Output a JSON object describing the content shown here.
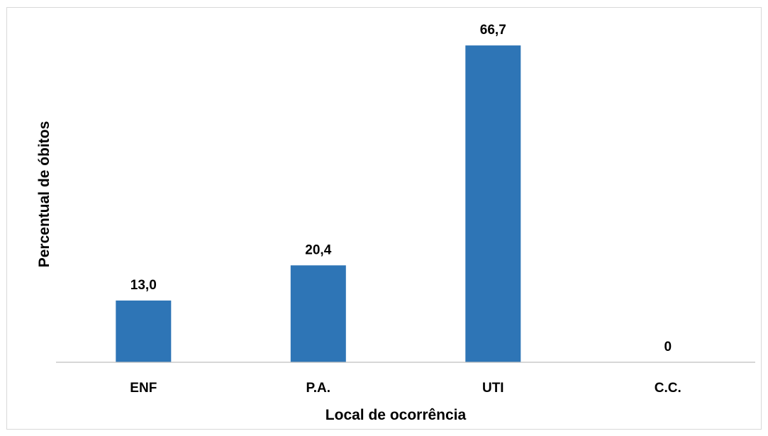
{
  "chart_data": {
    "type": "bar",
    "title": "",
    "xlabel": "Local de ocorrência",
    "ylabel": "Percentual de óbitos",
    "categories": [
      "ENF",
      "P.A.",
      "UTI",
      "C.C."
    ],
    "values": [
      13.0,
      20.4,
      66.7,
      0
    ],
    "value_labels": [
      "13,0",
      "20,4",
      "66,7",
      "0"
    ],
    "ylim": [
      0,
      70
    ],
    "grid": false,
    "legend": "none",
    "bar_color": "#2e75b6",
    "axis_color": "#bfbfbf"
  }
}
